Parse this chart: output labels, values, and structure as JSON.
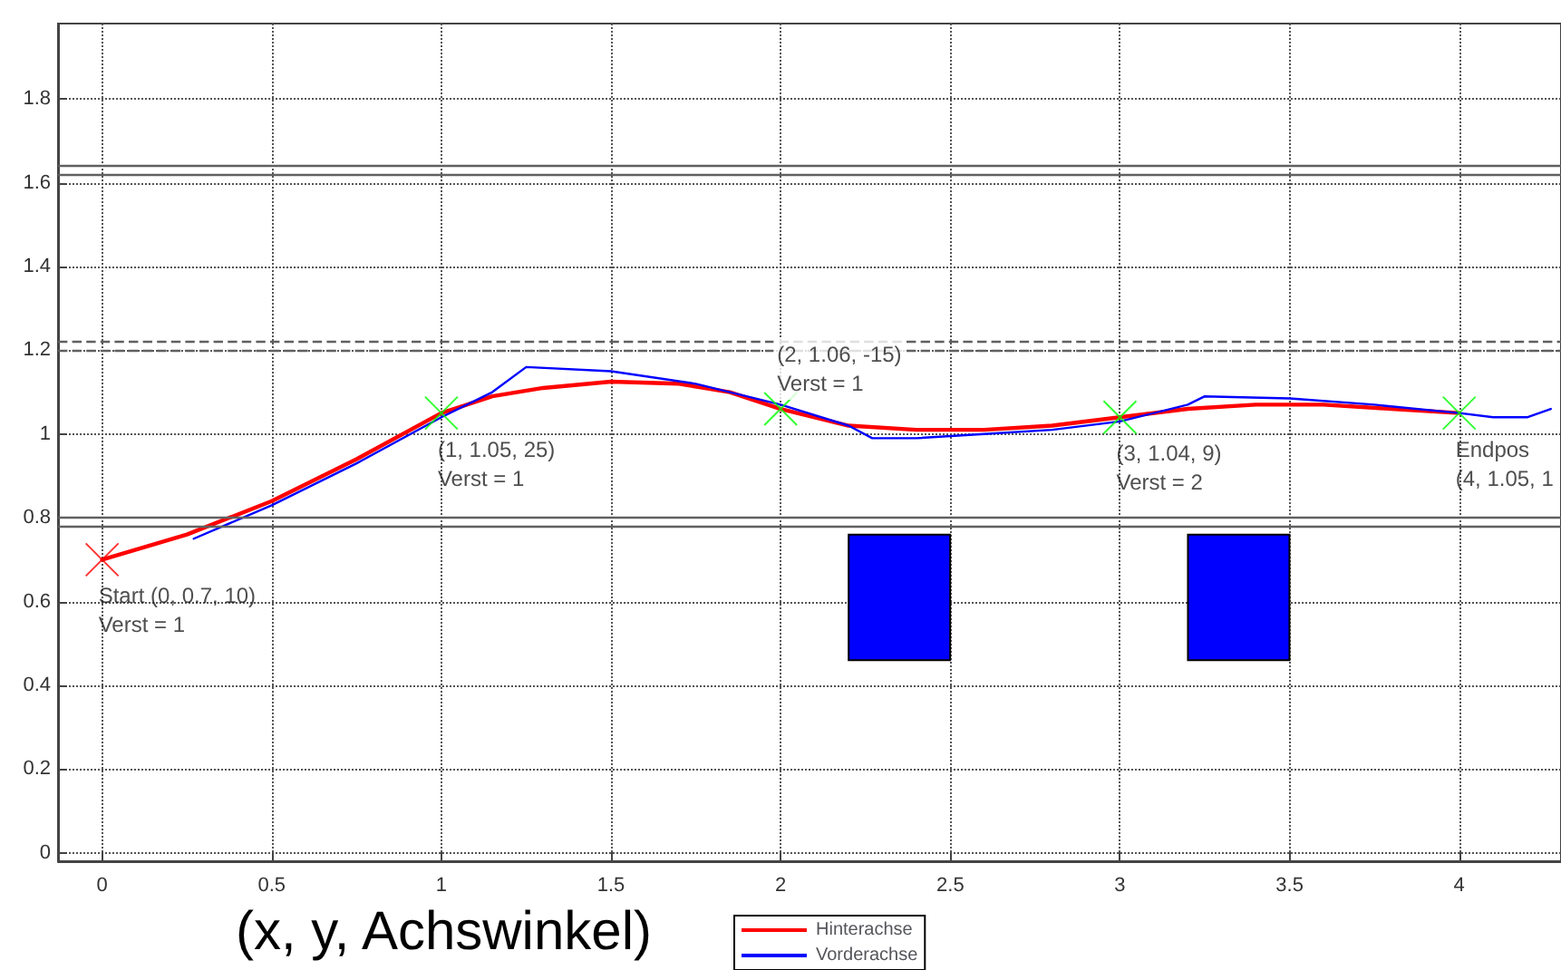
{
  "chart_data": {
    "type": "line",
    "xlim": [
      -0.13,
      4.3
    ],
    "ylim": [
      -0.02,
      1.98
    ],
    "xticks": [
      0,
      0.5,
      1,
      1.5,
      2,
      2.5,
      3,
      3.5,
      4
    ],
    "yticks": [
      0,
      0.2,
      0.4,
      0.6,
      0.8,
      1,
      1.2,
      1.4,
      1.6,
      1.8
    ],
    "grid": true,
    "legend": "bottom",
    "marker": "none",
    "series": [
      {
        "name": "Hinterachse",
        "color": "#ff0000",
        "x": [
          0,
          0.25,
          0.5,
          0.75,
          1,
          1.15,
          1.3,
          1.5,
          1.7,
          1.85,
          2,
          2.2,
          2.4,
          2.6,
          2.8,
          3,
          3.2,
          3.4,
          3.6,
          3.8,
          4
        ],
        "values": [
          0.7,
          0.76,
          0.84,
          0.94,
          1.05,
          1.09,
          1.11,
          1.125,
          1.12,
          1.1,
          1.06,
          1.02,
          1.01,
          1.01,
          1.02,
          1.04,
          1.06,
          1.07,
          1.07,
          1.06,
          1.05
        ]
      },
      {
        "name": "Vorderachse",
        "color": "#0000ff",
        "x": [
          0.27,
          0.5,
          0.75,
          1,
          1.15,
          1.25,
          1.5,
          1.75,
          2,
          2.2,
          2.27,
          2.4,
          2.6,
          2.8,
          3,
          3.2,
          3.25,
          3.5,
          3.75,
          4,
          4.1,
          4.2,
          4.27
        ],
        "values": [
          0.75,
          0.83,
          0.93,
          1.04,
          1.1,
          1.16,
          1.15,
          1.12,
          1.07,
          1.02,
          0.99,
          0.99,
          1.0,
          1.01,
          1.03,
          1.07,
          1.09,
          1.085,
          1.07,
          1.05,
          1.04,
          1.04,
          1.06
        ]
      },
      {
        "type": "scatter",
        "marker": "cross",
        "color": "#00ff00",
        "x": [
          1,
          2,
          3,
          4
        ],
        "values": [
          1.05,
          1.06,
          1.04,
          1.05
        ]
      },
      {
        "type": "scatter",
        "marker": "cross",
        "color": "#ff0000",
        "x": [
          0
        ],
        "values": [
          0.7
        ]
      },
      {
        "type": "bar",
        "color": "#0000ff",
        "x": [
          2.35,
          3.35
        ],
        "base": [
          0.46,
          0.46
        ],
        "values": [
          0.3,
          0.3
        ]
      }
    ],
    "ref_lines": [
      {
        "axis": "y",
        "value": 1.64,
        "color": "#606060",
        "line_style": "solid"
      },
      {
        "axis": "y",
        "value": 1.62,
        "color": "#606060",
        "line_style": "solid"
      },
      {
        "axis": "y",
        "value": 1.22,
        "color": "#606060",
        "line_style": "dashed"
      },
      {
        "axis": "y",
        "value": 1.2,
        "color": "#606060",
        "line_style": "dashed"
      },
      {
        "axis": "y",
        "value": 0.8,
        "color": "#606060",
        "line_style": "solid"
      },
      {
        "axis": "y",
        "value": 0.78,
        "color": "#606060",
        "line_style": "solid"
      }
    ],
    "annotations": [
      {
        "text": "Start (0, 0.7, 10)\nVerst = 1",
        "x": 0,
        "y": 0.7
      },
      {
        "text": "(1, 1.05, 25)\nVerst = 1",
        "x": 1,
        "y": 1.05
      },
      {
        "text": "(2, 1.06, -15)\nVerst = 1",
        "x": 2,
        "y": 1.06
      },
      {
        "text": "(3, 1.04, 9)\nVerst = 2",
        "x": 3,
        "y": 1.04
      },
      {
        "text": "Endpos\n(4, 1.05, 1",
        "x": 4,
        "y": 1.05
      },
      "(x, y, Achswinkel)"
    ]
  }
}
